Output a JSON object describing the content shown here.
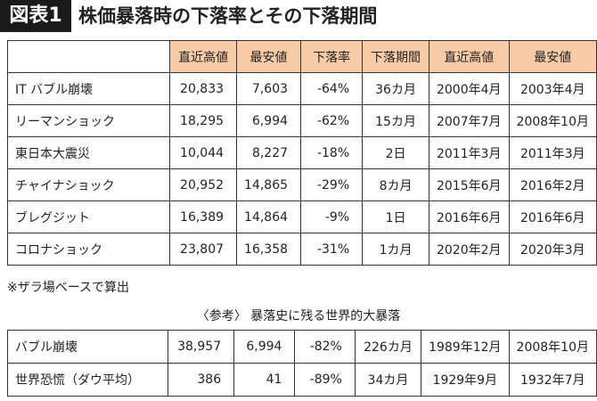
{
  "header": {
    "badge": "図表1",
    "title": "株価暴落時の下落率とその下落期間"
  },
  "table": {
    "columns": [
      "直近高値",
      "最安値",
      "下落率",
      "下落期間",
      "直近高値",
      "最安値"
    ],
    "rows": [
      [
        "IT バブル崩壊",
        "20,833",
        "7,603",
        "-64%",
        "36カ月",
        "2000年4月",
        "2003年4月"
      ],
      [
        "リーマンショック",
        "18,295",
        "6,994",
        "-62%",
        "15カ月",
        "2007年7月",
        "2008年10月"
      ],
      [
        "東日本大震災",
        "10,044",
        "8,227",
        "-18%",
        "2日",
        "2011年3月",
        "2011年3月"
      ],
      [
        "チャイナショック",
        "20,952",
        "14,865",
        "-29%",
        "8カ月",
        "2015年6月",
        "2016年2月"
      ],
      [
        "ブレグジット",
        "16,389",
        "14,864",
        "-9%",
        "1日",
        "2016年6月",
        "2016年6月"
      ],
      [
        "コロナショック",
        "23,807",
        "16,358",
        "-31%",
        "1カ月",
        "2020年2月",
        "2020年3月"
      ]
    ]
  },
  "note": "※ザラ場ベースで算出",
  "reference": {
    "title": "〈参考〉 暴落史に残る世界的大暴落",
    "rows": [
      [
        "バブル崩壊",
        "38,957",
        "6,994",
        "-82%",
        "226カ月",
        "1989年12月",
        "2008年10月"
      ],
      [
        "世界恐慌（ダウ平均）",
        "386",
        "41",
        "-89%",
        "34カ月",
        "1929年9月",
        "1932年7月"
      ]
    ]
  }
}
